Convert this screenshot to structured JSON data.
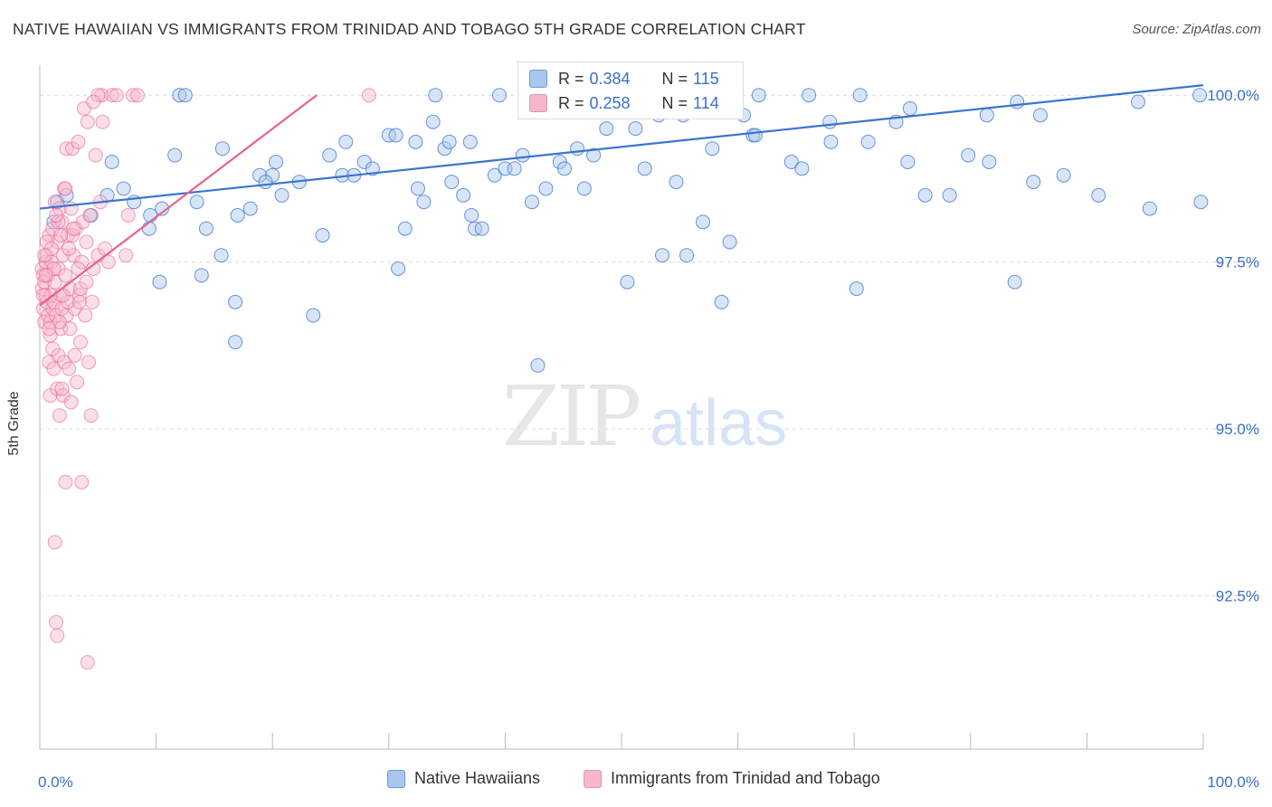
{
  "title": "NATIVE HAWAIIAN VS IMMIGRANTS FROM TRINIDAD AND TOBAGO 5TH GRADE CORRELATION CHART",
  "source": "Source: ZipAtlas.com",
  "watermark": {
    "zip": "ZIP",
    "atlas": "atlas"
  },
  "colors": {
    "blue": "#3a74d1",
    "blue_fill": "#a9c6ee",
    "pink": "#e8628f",
    "pink_fill": "#f6b7cb",
    "tick_text": "#3a6fc8",
    "grid": "#dcdcdc"
  },
  "stats": [
    {
      "r_label": "R =",
      "r_value": "0.384",
      "n_label": "N =",
      "n_value": "115"
    },
    {
      "r_label": "R =",
      "r_value": "0.258",
      "n_label": "N =",
      "n_value": "114"
    }
  ],
  "legend": [
    "Native Hawaiians",
    "Immigrants from Trinidad and Tobago"
  ],
  "chart_data": {
    "type": "scatter",
    "xlabel": "",
    "ylabel": "5th Grade",
    "xlim": [
      0,
      100
    ],
    "ylim": [
      90.2,
      100.45
    ],
    "x_tick_labels": [
      {
        "x": 0,
        "label": "0.0%"
      },
      {
        "x": 100,
        "label": "100.0%"
      }
    ],
    "y_tick_labels": [
      {
        "y": 100.0,
        "label": "100.0%"
      },
      {
        "y": 97.5,
        "label": "97.5%"
      },
      {
        "y": 95.0,
        "label": "95.0%"
      },
      {
        "y": 92.5,
        "label": "92.5%"
      }
    ],
    "x_minor_ticks": [
      10,
      20,
      30,
      40,
      50,
      60,
      70,
      80,
      90,
      100
    ],
    "grid": true,
    "series": [
      {
        "name": "Native Hawaiians",
        "color": "#3a74d1",
        "trend": {
          "x": [
            0,
            100
          ],
          "y": [
            98.3,
            100.15
          ]
        },
        "points": [
          [
            1.2,
            98.1
          ],
          [
            1.5,
            98.4
          ],
          [
            2.3,
            98.5
          ],
          [
            4.4,
            98.2
          ],
          [
            5.8,
            98.5
          ],
          [
            6.2,
            99.0
          ],
          [
            8.1,
            98.4
          ],
          [
            9.4,
            98.0
          ],
          [
            9.5,
            98.2
          ],
          [
            10.3,
            97.2
          ],
          [
            11.6,
            99.1
          ],
          [
            10.5,
            98.3
          ],
          [
            13.5,
            98.4
          ],
          [
            13.9,
            97.3
          ],
          [
            14.3,
            98.0
          ],
          [
            15.6,
            97.6
          ],
          [
            15.7,
            99.2
          ],
          [
            16.8,
            96.9
          ],
          [
            16.8,
            96.3
          ],
          [
            17.0,
            98.2
          ],
          [
            18.1,
            98.3
          ],
          [
            18.9,
            98.8
          ],
          [
            20.0,
            98.8
          ],
          [
            20.3,
            99.0
          ],
          [
            20.8,
            98.5
          ],
          [
            22.3,
            98.7
          ],
          [
            23.5,
            96.7
          ],
          [
            24.3,
            97.9
          ],
          [
            24.9,
            99.1
          ],
          [
            26.0,
            98.8
          ],
          [
            27.0,
            98.8
          ],
          [
            27.9,
            99.0
          ],
          [
            28.6,
            98.9
          ],
          [
            30.0,
            99.4
          ],
          [
            30.8,
            97.4
          ],
          [
            31.4,
            98.0
          ],
          [
            32.3,
            99.3
          ],
          [
            32.5,
            98.6
          ],
          [
            33.0,
            98.4
          ],
          [
            33.8,
            99.6
          ],
          [
            34.8,
            99.2
          ],
          [
            35.2,
            99.3
          ],
          [
            35.4,
            98.7
          ],
          [
            36.4,
            98.5
          ],
          [
            37.1,
            98.2
          ],
          [
            37.4,
            98.0
          ],
          [
            38.0,
            98.0
          ],
          [
            39.1,
            98.8
          ],
          [
            40.0,
            98.9
          ],
          [
            40.8,
            98.9
          ],
          [
            41.5,
            99.1
          ],
          [
            42.3,
            98.4
          ],
          [
            43.5,
            98.6
          ],
          [
            44.7,
            99.0
          ],
          [
            45.1,
            98.9
          ],
          [
            46.2,
            99.2
          ],
          [
            46.8,
            98.6
          ],
          [
            47.6,
            99.1
          ],
          [
            49.3,
            99.8
          ],
          [
            50.5,
            97.2
          ],
          [
            51.2,
            99.5
          ],
          [
            52.0,
            98.9
          ],
          [
            53.5,
            97.6
          ],
          [
            54.7,
            98.7
          ],
          [
            55.6,
            97.6
          ],
          [
            57.0,
            98.1
          ],
          [
            57.8,
            99.2
          ],
          [
            58.6,
            96.9
          ],
          [
            59.3,
            97.8
          ],
          [
            61.3,
            99.4
          ],
          [
            61.8,
            100.0
          ],
          [
            64.6,
            99.0
          ],
          [
            65.5,
            98.9
          ],
          [
            66.1,
            100.0
          ],
          [
            68.0,
            99.3
          ],
          [
            70.2,
            97.1
          ],
          [
            71.2,
            99.3
          ],
          [
            74.6,
            99.0
          ],
          [
            76.1,
            98.5
          ],
          [
            78.2,
            98.5
          ],
          [
            79.8,
            99.1
          ],
          [
            81.6,
            99.0
          ],
          [
            83.8,
            97.2
          ],
          [
            85.4,
            98.7
          ],
          [
            88.0,
            98.8
          ],
          [
            91.0,
            98.5
          ],
          [
            95.4,
            98.3
          ],
          [
            99.8,
            98.4
          ],
          [
            12.0,
            100.0
          ],
          [
            12.5,
            100.0
          ],
          [
            34.0,
            100.0
          ],
          [
            39.5,
            100.0
          ],
          [
            42.8,
            95.95
          ],
          [
            44.7,
            99.9
          ],
          [
            55.3,
            99.7
          ],
          [
            57.5,
            99.8
          ],
          [
            58.5,
            99.9
          ],
          [
            60.5,
            99.7
          ],
          [
            70.5,
            100.0
          ],
          [
            73.6,
            99.6
          ],
          [
            74.8,
            99.8
          ],
          [
            81.4,
            99.7
          ],
          [
            84.0,
            99.9
          ],
          [
            86.0,
            99.7
          ],
          [
            94.4,
            99.9
          ],
          [
            99.7,
            100.0
          ],
          [
            7.2,
            98.6
          ],
          [
            19.4,
            98.7
          ],
          [
            26.3,
            99.3
          ],
          [
            30.6,
            99.4
          ],
          [
            37.0,
            99.3
          ],
          [
            48.7,
            99.5
          ],
          [
            53.2,
            99.7
          ],
          [
            61.5,
            99.4
          ],
          [
            67.9,
            99.6
          ]
        ]
      },
      {
        "name": "Immigrants from Trinidad and Tobago",
        "color": "#e8628f",
        "trend": {
          "x": [
            0,
            23.8
          ],
          "y": [
            96.85,
            100.0
          ]
        },
        "points": [
          [
            0.2,
            97.4
          ],
          [
            0.2,
            97.1
          ],
          [
            0.3,
            96.8
          ],
          [
            0.3,
            97.3
          ],
          [
            0.4,
            97.2
          ],
          [
            0.4,
            96.6
          ],
          [
            0.5,
            97.5
          ],
          [
            0.5,
            97.0
          ],
          [
            0.6,
            96.9
          ],
          [
            0.6,
            97.6
          ],
          [
            0.7,
            96.7
          ],
          [
            0.7,
            97.3
          ],
          [
            0.8,
            96.0
          ],
          [
            0.8,
            97.9
          ],
          [
            0.9,
            95.5
          ],
          [
            0.9,
            96.6
          ],
          [
            1.0,
            97.0
          ],
          [
            1.0,
            97.5
          ],
          [
            1.1,
            96.8
          ],
          [
            1.1,
            98.0
          ],
          [
            1.2,
            96.9
          ],
          [
            1.2,
            95.9
          ],
          [
            1.3,
            97.2
          ],
          [
            1.3,
            98.4
          ],
          [
            1.4,
            96.7
          ],
          [
            1.5,
            95.6
          ],
          [
            1.5,
            97.8
          ],
          [
            1.6,
            97.4
          ],
          [
            1.6,
            96.1
          ],
          [
            1.7,
            98.3
          ],
          [
            1.7,
            95.2
          ],
          [
            1.8,
            97.0
          ],
          [
            1.8,
            96.5
          ],
          [
            1.9,
            98.1
          ],
          [
            1.9,
            96.8
          ],
          [
            2.0,
            95.5
          ],
          [
            2.0,
            97.6
          ],
          [
            2.1,
            98.6
          ],
          [
            2.1,
            96.0
          ],
          [
            2.2,
            97.3
          ],
          [
            2.3,
            99.2
          ],
          [
            2.3,
            96.7
          ],
          [
            2.4,
            97.9
          ],
          [
            2.5,
            95.9
          ],
          [
            2.6,
            97.1
          ],
          [
            2.6,
            96.5
          ],
          [
            2.7,
            98.3
          ],
          [
            2.8,
            99.2
          ],
          [
            2.9,
            97.6
          ],
          [
            3.0,
            96.8
          ],
          [
            3.1,
            98.0
          ],
          [
            3.2,
            95.7
          ],
          [
            3.3,
            99.3
          ],
          [
            3.4,
            97.0
          ],
          [
            3.5,
            96.3
          ],
          [
            3.6,
            97.5
          ],
          [
            3.7,
            98.1
          ],
          [
            3.8,
            99.8
          ],
          [
            3.9,
            96.7
          ],
          [
            4.0,
            97.8
          ],
          [
            4.1,
            99.6
          ],
          [
            4.2,
            96.0
          ],
          [
            4.3,
            98.2
          ],
          [
            4.4,
            95.2
          ],
          [
            4.5,
            96.9
          ],
          [
            4.6,
            97.4
          ],
          [
            4.8,
            99.1
          ],
          [
            5.0,
            97.6
          ],
          [
            5.2,
            98.4
          ],
          [
            5.4,
            99.6
          ],
          [
            5.6,
            97.7
          ],
          [
            5.9,
            97.5
          ],
          [
            6.2,
            100.0
          ],
          [
            6.6,
            100.0
          ],
          [
            7.4,
            97.6
          ],
          [
            7.6,
            98.2
          ],
          [
            8.0,
            100.0
          ],
          [
            1.3,
            93.3
          ],
          [
            1.4,
            92.1
          ],
          [
            1.5,
            91.9
          ],
          [
            2.2,
            94.2
          ],
          [
            3.6,
            94.2
          ],
          [
            4.1,
            91.5
          ],
          [
            8.4,
            100.0
          ],
          [
            28.3,
            100.0
          ],
          [
            5.3,
            100.0
          ],
          [
            5.0,
            100.0
          ],
          [
            4.6,
            99.9
          ],
          [
            2.8,
            97.9
          ],
          [
            1.6,
            98.1
          ],
          [
            0.6,
            97.8
          ],
          [
            0.9,
            96.4
          ],
          [
            1.0,
            97.7
          ],
          [
            1.7,
            96.6
          ],
          [
            2.4,
            96.9
          ],
          [
            2.9,
            98.0
          ],
          [
            3.3,
            97.4
          ],
          [
            0.4,
            97.6
          ],
          [
            1.2,
            97.4
          ],
          [
            1.9,
            95.6
          ],
          [
            2.5,
            97.7
          ],
          [
            3.0,
            96.1
          ],
          [
            0.8,
            96.5
          ],
          [
            1.4,
            98.2
          ],
          [
            2.0,
            97.0
          ],
          [
            2.7,
            95.4
          ],
          [
            3.5,
            97.1
          ],
          [
            0.3,
            97.0
          ],
          [
            0.5,
            97.3
          ],
          [
            1.1,
            96.2
          ],
          [
            1.8,
            97.9
          ],
          [
            2.2,
            98.6
          ],
          [
            3.4,
            96.9
          ],
          [
            4.0,
            97.2
          ]
        ]
      }
    ]
  }
}
